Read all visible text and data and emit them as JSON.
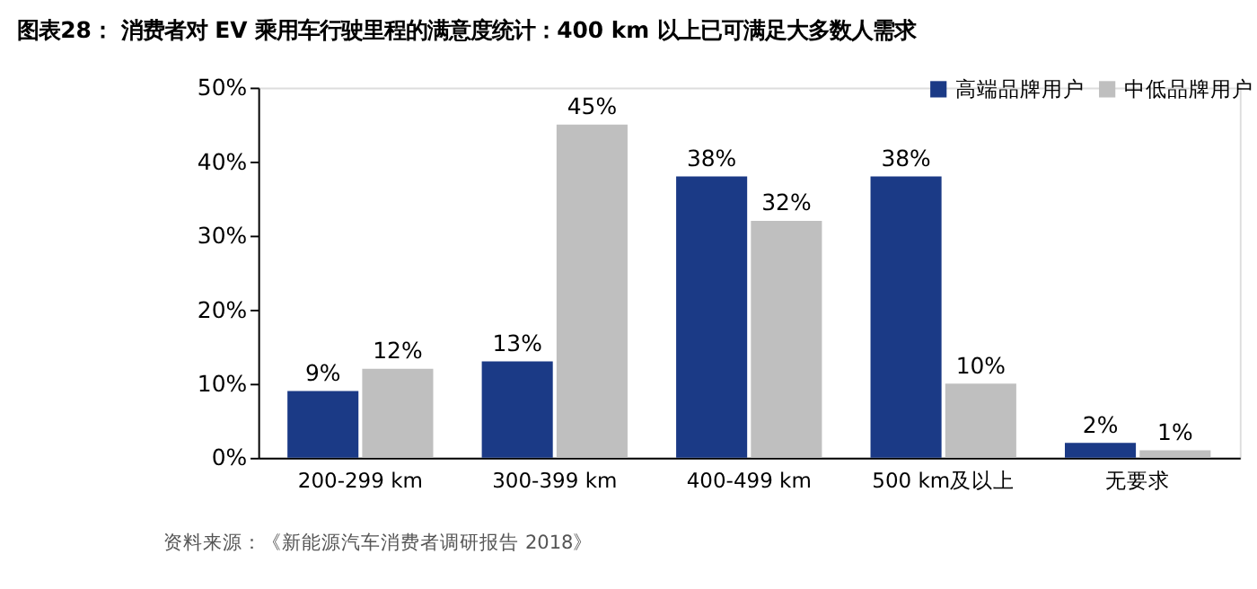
{
  "chart_data": {
    "type": "bar",
    "title": "图表28： 消费者对 EV 乘用车行驶里程的满意度统计：400 km 以上已可满足大多数人需求",
    "categories": [
      "200-299 km",
      "300-399 km",
      "400-499 km",
      "500 km及以上",
      "无要求"
    ],
    "series": [
      {
        "name": "高端品牌用户",
        "color": "#1b3a86",
        "values": [
          9,
          13,
          38,
          38,
          2
        ],
        "value_labels": [
          "9%",
          "13%",
          "38%",
          "38%",
          "2%"
        ]
      },
      {
        "name": "中低品牌用户",
        "color": "#bfbfbf",
        "values": [
          12,
          45,
          32,
          10,
          1
        ],
        "value_labels": [
          "12%",
          "45%",
          "32%",
          "10%",
          "1%"
        ]
      }
    ],
    "ylim": [
      0,
      50
    ],
    "yticks": [
      {
        "value": 0,
        "label": "0%"
      },
      {
        "value": 10,
        "label": "10%"
      },
      {
        "value": 20,
        "label": "20%"
      },
      {
        "value": 30,
        "label": "30%"
      },
      {
        "value": 40,
        "label": "40%"
      },
      {
        "value": 50,
        "label": "50%"
      }
    ],
    "grid": false,
    "legend": "top right",
    "annotations": [
      "资料来源：《新能源汽车消费者调研报告 2018》"
    ]
  }
}
